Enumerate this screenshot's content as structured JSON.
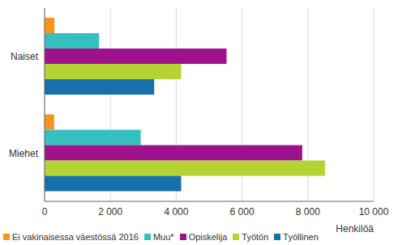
{
  "chart_data": {
    "type": "bar",
    "orientation": "horizontal",
    "categories": [
      "Naiset",
      "Miehet"
    ],
    "series": [
      {
        "name": "Ei vakinaisessa väestössä 2016",
        "color": "#f7941e",
        "values": [
          300,
          290
        ]
      },
      {
        "name": "Muu*",
        "color": "#35bfbf",
        "values": [
          1650,
          2920
        ]
      },
      {
        "name": "Opiskelija",
        "color": "#a0118d",
        "values": [
          5530,
          7830
        ]
      },
      {
        "name": "Työtön",
        "color": "#b5d334",
        "values": [
          4150,
          8520
        ]
      },
      {
        "name": "Työllinen",
        "color": "#1670ab",
        "values": [
          3330,
          4150
        ]
      }
    ],
    "x_label": "Henkilöä",
    "xlim": [
      0,
      10000
    ],
    "xticks": [
      0,
      {
        "value": 2000,
        "label": "2 000"
      },
      {
        "value": 4000,
        "label": "4 000"
      },
      {
        "value": 6000,
        "label": "6 000"
      },
      {
        "value": 8000,
        "label": "8 000"
      },
      {
        "value": 10000,
        "label": "10 000"
      }
    ],
    "grid": true,
    "legend": "bottom"
  }
}
